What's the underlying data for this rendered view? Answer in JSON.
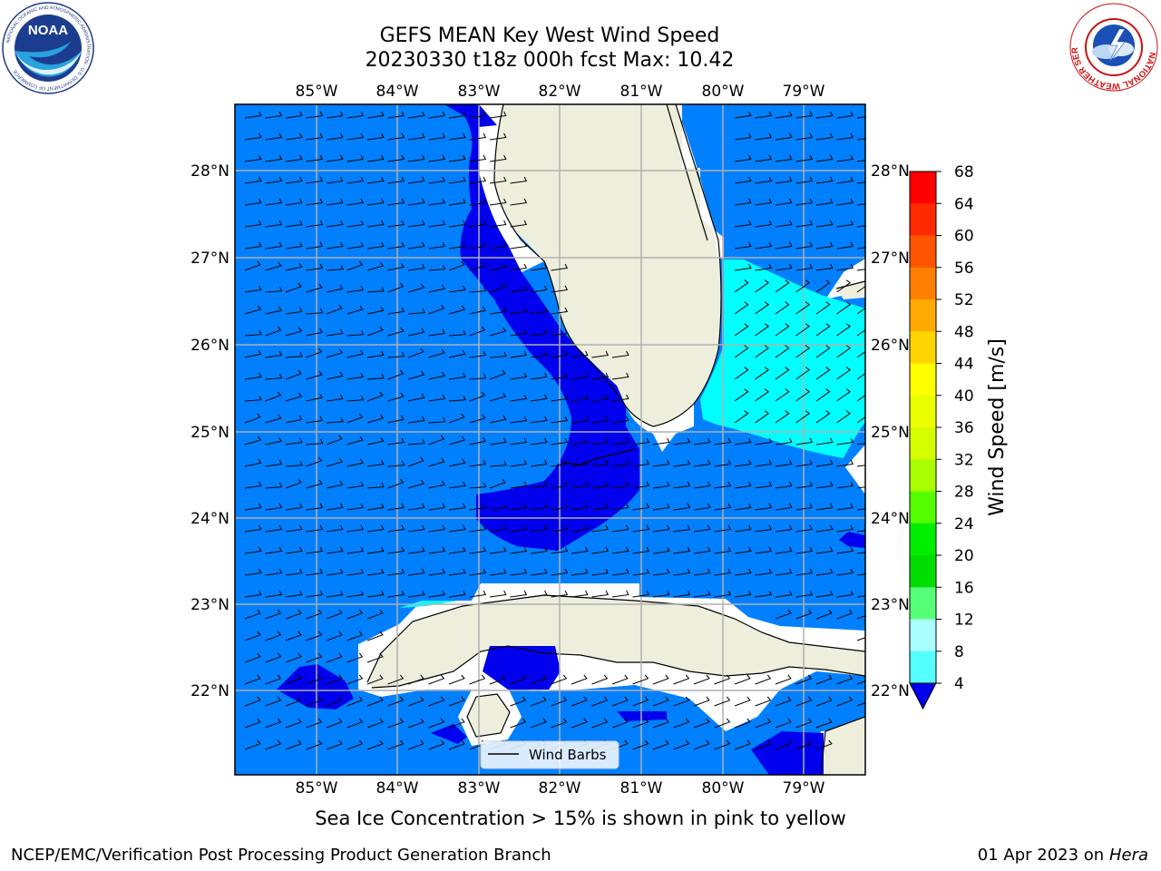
{
  "title": {
    "line1": "GEFS MEAN Key West Wind Speed",
    "line2": "20230330 t18z 000h fcst   Max: 10.42"
  },
  "map": {
    "lon_ticks_top": [
      "85°W",
      "84°W",
      "83°W",
      "82°W",
      "81°W",
      "80°W",
      "79°W"
    ],
    "lon_ticks_bottom": [
      "85°W",
      "84°W",
      "83°W",
      "82°W",
      "81°W",
      "80°W",
      "79°W"
    ],
    "lat_ticks_left": [
      "28°N",
      "27°N",
      "26°N",
      "25°N",
      "24°N",
      "23°N",
      "22°N"
    ],
    "lat_ticks_right": [
      "28°N",
      "27°N",
      "26°N",
      "25°N",
      "24°N",
      "23°N",
      "22°N"
    ],
    "legend_label": "Wind Barbs",
    "colors": {
      "ocean_4_8": "#0080ff",
      "wind_lt_4": "#0000ee",
      "wind_8_12": "#00ffff",
      "land": "#eeeedd",
      "grid": "#b0b0b0"
    }
  },
  "colorbar": {
    "label": "Wind Speed [m/s]",
    "ticks": [
      "68",
      "64",
      "60",
      "56",
      "52",
      "48",
      "44",
      "40",
      "36",
      "32",
      "28",
      "24",
      "20",
      "16",
      "12",
      "8",
      "4"
    ],
    "colors": [
      "#ff0000",
      "#ff2a00",
      "#ff5500",
      "#ff8000",
      "#ffaa00",
      "#ffd500",
      "#ffff00",
      "#eaff00",
      "#d5ff00",
      "#aaff00",
      "#55ff00",
      "#00ee00",
      "#00dd00",
      "#55ff77",
      "#aaffff",
      "#55ffff",
      "#00ffff",
      "#0080ff"
    ],
    "under_color": "#0000ee"
  },
  "subtitle": "Sea Ice Concentration > 15% is shown in pink to yellow",
  "footer": {
    "left": "NCEP/EMC/Verification Post Processing Product Generation Branch",
    "right_date": "01 Apr 2023 on ",
    "right_host": "Hera"
  },
  "logos": {
    "noaa_text": "NOAA",
    "noaa_ring_text": "NATIONAL OCEANIC AND ATMOSPHERIC ADMINISTRATION · U.S. DEPARTMENT OF COMMERCE",
    "nws_ring_text": "NATIONAL WEATHER SERVICE"
  }
}
